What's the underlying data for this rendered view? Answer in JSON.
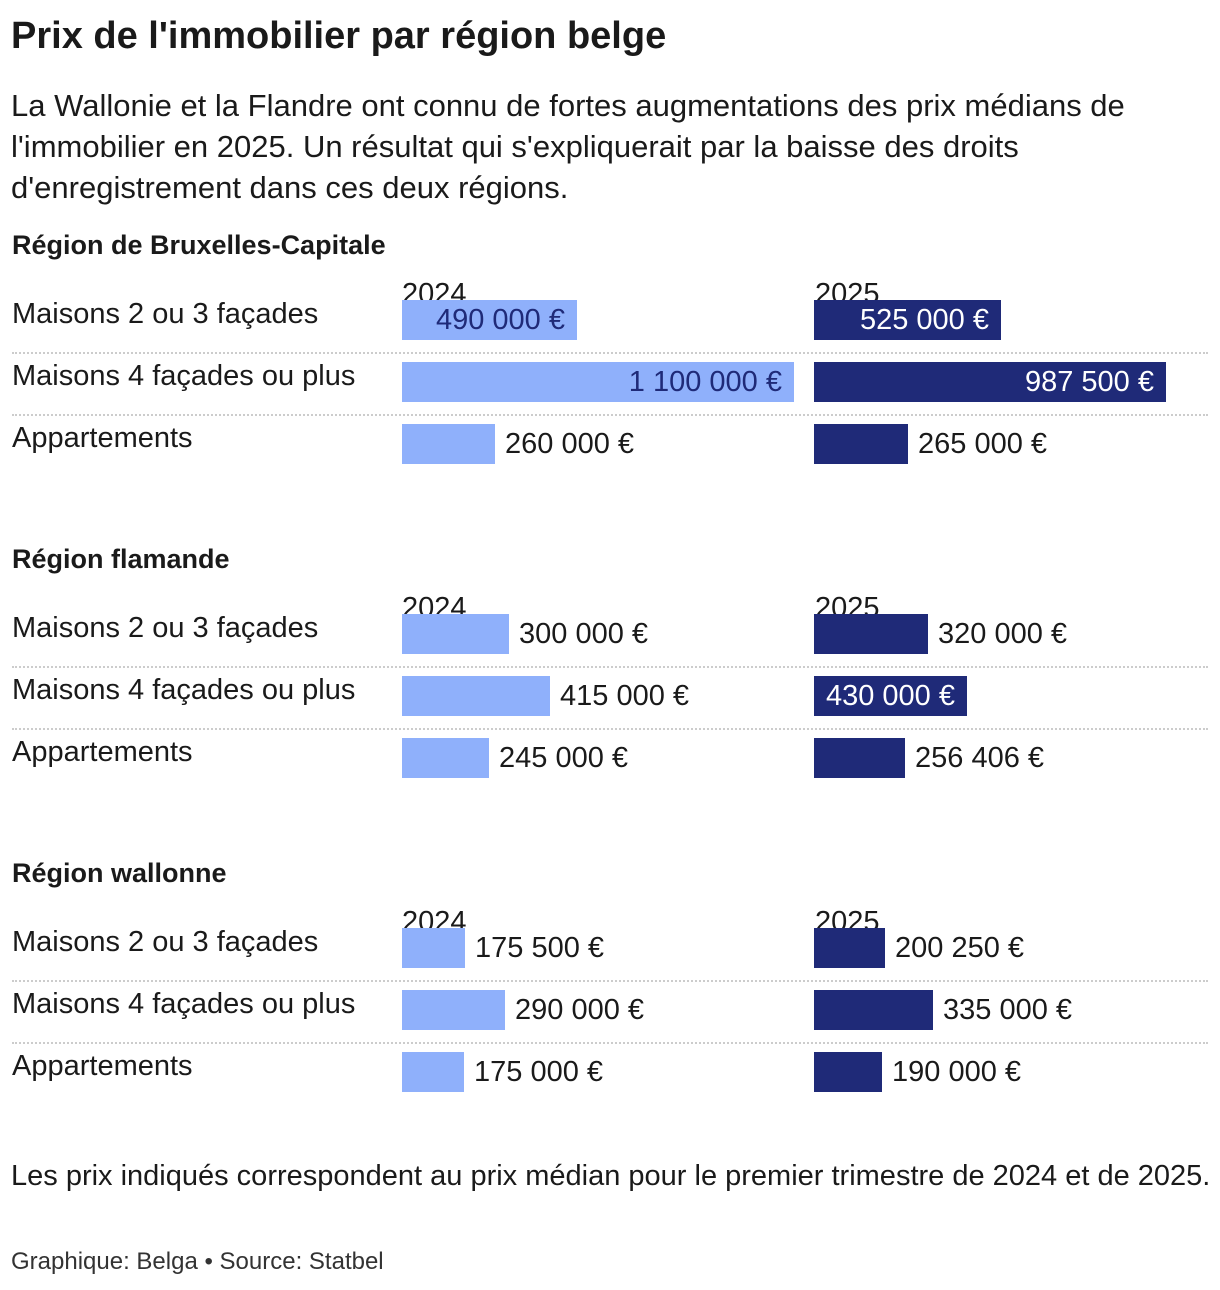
{
  "title": "Prix de l'immobilier par région belge",
  "subtitle": "La Wallonie et la Flandre ont connu de fortes augmentations des prix médians de l'immobilier en 2025. Un résultat qui s'expliquerait par la baisse des droits d'enregistrement dans ces deux régions.",
  "note": "Les prix indiqués correspondent au prix médian pour le premier trimestre de 2024 et de 2025.",
  "credit": "Graphique: Belga • Source: Statbel",
  "colors": {
    "bar_2024": "#8fb0fb",
    "bar_2025": "#1f2a78",
    "label_inside_2024": "#1f2a78",
    "label_inside_2025": "#ffffff"
  },
  "chart_data": {
    "type": "bar",
    "orientation": "horizontal",
    "years": [
      "2024",
      "2025"
    ],
    "unit": "€",
    "max_value": 1100000,
    "sections": [
      {
        "title": "Région de Bruxelles-Capitale",
        "rows": [
          {
            "label": "Maisons 2 ou 3 façades",
            "values": [
              490000,
              525000
            ],
            "labels": [
              "490 000 €",
              "525 000 €"
            ]
          },
          {
            "label": "Maisons 4 façades ou plus",
            "values": [
              1100000,
              987500
            ],
            "labels": [
              "1 100 000 €",
              "987 500 €"
            ]
          },
          {
            "label": "Appartements",
            "values": [
              260000,
              265000
            ],
            "labels": [
              "260 000 €",
              "265 000 €"
            ]
          }
        ]
      },
      {
        "title": "Région flamande",
        "rows": [
          {
            "label": "Maisons 2 ou 3 façades",
            "values": [
              300000,
              320000
            ],
            "labels": [
              "300 000 €",
              "320 000 €"
            ]
          },
          {
            "label": "Maisons 4 façades ou plus",
            "values": [
              415000,
              430000
            ],
            "labels": [
              "415 000 €",
              "430 000 €"
            ]
          },
          {
            "label": "Appartements",
            "values": [
              245000,
              256406
            ],
            "labels": [
              "245 000 €",
              "256 406 €"
            ]
          }
        ]
      },
      {
        "title": "Région wallonne",
        "rows": [
          {
            "label": "Maisons 2 ou 3 façades",
            "values": [
              175500,
              200250
            ],
            "labels": [
              "175 500 €",
              "200 250 €"
            ]
          },
          {
            "label": "Maisons 4 façades ou plus",
            "values": [
              290000,
              335000
            ],
            "labels": [
              "290 000 €",
              "335 000 €"
            ]
          },
          {
            "label": "Appartements",
            "values": [
              175000,
              190000
            ],
            "labels": [
              "175 000 €",
              "190 000 €"
            ]
          }
        ]
      }
    ]
  }
}
